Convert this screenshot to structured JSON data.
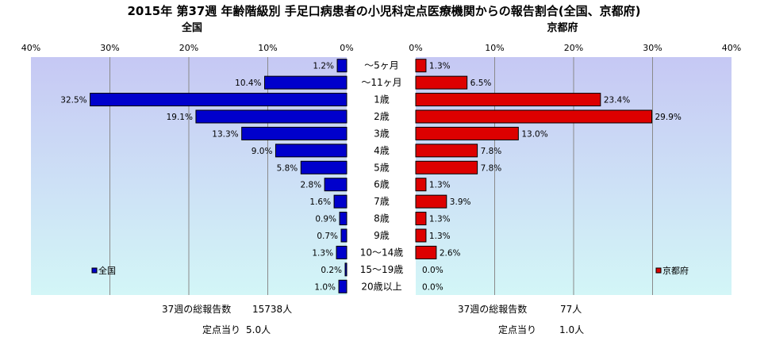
{
  "title": "2015年 第37週 年齢階級別 手足口病患者の小児科定点医療機関からの報告割合(全国、京都府)",
  "chart_data": {
    "type": "bar",
    "categories": [
      "～5ヶ月",
      "～11ヶ月",
      "1歳",
      "2歳",
      "3歳",
      "4歳",
      "5歳",
      "6歳",
      "7歳",
      "8歳",
      "9歳",
      "10～14歳",
      "15～19歳",
      "20歳以上"
    ],
    "xlim": [
      0,
      40
    ],
    "x_ticks": [
      "0%",
      "10%",
      "20%",
      "30%",
      "40%"
    ],
    "grid": true,
    "series": [
      {
        "name": "全国",
        "subtitle": "全国",
        "color": "#0000cc",
        "values": [
          1.2,
          10.4,
          32.5,
          19.1,
          13.3,
          9.0,
          5.8,
          2.8,
          1.6,
          0.9,
          0.7,
          1.3,
          0.2,
          1.0
        ],
        "labels": [
          "1.2%",
          "10.4%",
          "32.5%",
          "19.1%",
          "13.3%",
          "9.0%",
          "5.8%",
          "2.8%",
          "1.6%",
          "0.9%",
          "0.7%",
          "1.3%",
          "0.2%",
          "1.0%"
        ],
        "legend_label": "全国",
        "legend_position": "bottom-left",
        "total_label": "37週の総報告数",
        "total_value": "15738人",
        "per_label": "定点当り",
        "per_value": "5.0人"
      },
      {
        "name": "京都府",
        "subtitle": "京都府",
        "color": "#dd0000",
        "values": [
          1.3,
          6.5,
          23.4,
          29.9,
          13.0,
          7.8,
          7.8,
          1.3,
          3.9,
          1.3,
          1.3,
          2.6,
          0.0,
          0.0
        ],
        "labels": [
          "1.3%",
          "6.5%",
          "23.4%",
          "29.9%",
          "13.0%",
          "7.8%",
          "7.8%",
          "1.3%",
          "3.9%",
          "1.3%",
          "1.3%",
          "2.6%",
          "0.0%",
          "0.0%"
        ],
        "legend_label": "京都府",
        "legend_position": "bottom-right",
        "total_label": "37週の総報告数",
        "total_value": "77人",
        "per_label": "定点当り",
        "per_value": "1.0人"
      }
    ]
  }
}
